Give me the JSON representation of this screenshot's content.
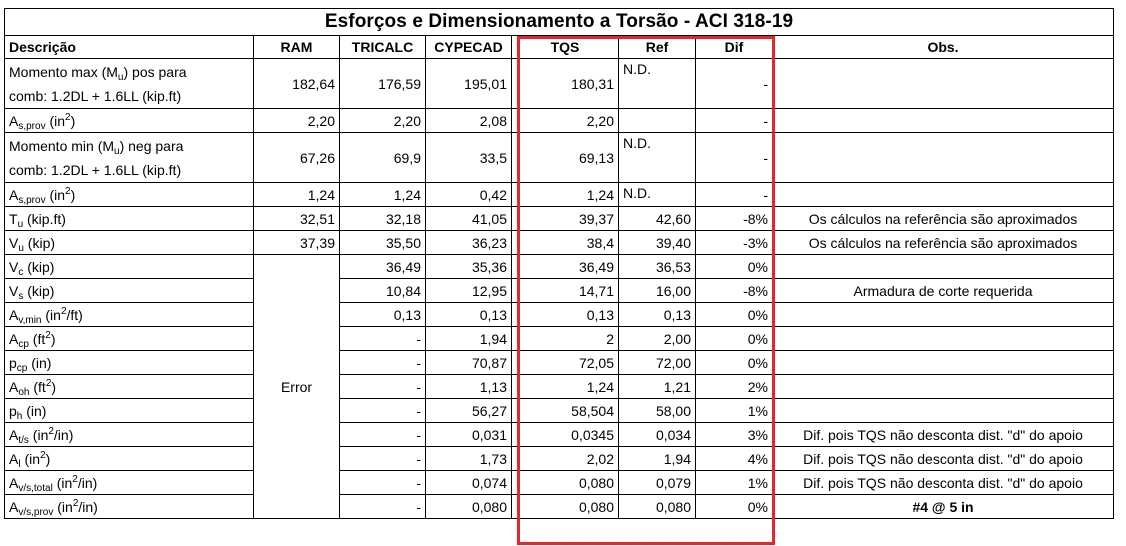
{
  "title": "Esforços e Dimensionamento a Torsão - ACI 318-19",
  "headers": {
    "descricao": "Descrição",
    "ram": "RAM",
    "tricalc": "TRICALC",
    "cypecad": "CYPECAD",
    "tqs": "TQS",
    "ref": "Ref",
    "dif": "Dif",
    "obs": "Obs."
  },
  "rows": [
    {
      "d1": "Momento max (M",
      "dsub": "u",
      "d2": ") pos para",
      "dline2": "comb: 1.2DL + 1.6LL (kip.ft)",
      "ram": "182,64",
      "tricalc": "176,59",
      "cypecad": "195,01",
      "tqs": "180,31",
      "ref": "N.D.",
      "dif": "-",
      "obs": ""
    },
    {
      "d1": "A",
      "dsub": "s,prov",
      "d2": " (in",
      "dsup": "2",
      "d3": ")",
      "ram": "2,20",
      "tricalc": "2,20",
      "cypecad": "2,08",
      "tqs": "2,20",
      "ref": "",
      "dif": "-",
      "obs": ""
    },
    {
      "d1": "Momento min (M",
      "dsub": "u",
      "d2": ") neg para",
      "dline2": "comb: 1.2DL + 1.6LL (kip.ft)",
      "ram": "67,26",
      "tricalc": "69,9",
      "cypecad": "33,5",
      "tqs": "69,13",
      "ref": "N.D.",
      "dif": "-",
      "obs": ""
    },
    {
      "d1": "A",
      "dsub": "s,prov",
      "d2": " (in",
      "dsup": "2",
      "d3": ")",
      "ram": "1,24",
      "tricalc": "1,24",
      "cypecad": "0,42",
      "tqs": "1,24",
      "ref": "N.D.",
      "dif": "-",
      "obs": ""
    },
    {
      "d1": "T",
      "dsub": "u",
      "d2": " (kip.ft)",
      "ram": "32,51",
      "tricalc": "32,18",
      "cypecad": "41,05",
      "tqs": "39,37",
      "ref": "42,60",
      "dif": "-8%",
      "obs": "Os cálculos na referência são aproximados"
    },
    {
      "d1": "V",
      "dsub": "u",
      "d2": " (kip)",
      "ram": "37,39",
      "tricalc": "35,50",
      "cypecad": "36,23",
      "tqs": "38,4",
      "ref": "39,40",
      "dif": "-3%",
      "obs": "Os cálculos na referência são aproximados"
    },
    {
      "d1": "V",
      "dsub": "c",
      "d2": " (kip)",
      "tricalc": "36,49",
      "cypecad": "35,36",
      "tqs": "36,49",
      "ref": "36,53",
      "dif": "0%",
      "obs": ""
    },
    {
      "d1": "V",
      "dsub": "s",
      "d2": " (kip)",
      "tricalc": "10,84",
      "cypecad": "12,95",
      "tqs": "14,71",
      "ref": "16,00",
      "dif": "-8%",
      "obs": "Armadura de corte requerida"
    },
    {
      "d1": "A",
      "dsub": "v,min",
      "d2": " (in",
      "dsup": "2",
      "d3": "/ft)",
      "tricalc": "0,13",
      "cypecad": "0,13",
      "tqs": "0,13",
      "ref": "0,13",
      "dif": "0%",
      "obs": ""
    },
    {
      "d1": "A",
      "dsub": "cp",
      "d2": " (ft",
      "dsup": "2",
      "d3": ")",
      "tricalc": "-",
      "cypecad": "1,94",
      "tqs": "2",
      "ref": "2,00",
      "dif": "0%",
      "obs": ""
    },
    {
      "d1": "p",
      "dsub": "cp",
      "d2": " (in)",
      "tricalc": "-",
      "cypecad": "70,87",
      "tqs": "72,05",
      "ref": "72,00",
      "dif": "0%",
      "obs": ""
    },
    {
      "d1": "A",
      "dsub": "oh",
      "d2": " (ft",
      "dsup": "2",
      "d3": ")",
      "tricalc": "-",
      "cypecad": "1,13",
      "tqs": "1,24",
      "ref": "1,21",
      "dif": "2%",
      "obs": ""
    },
    {
      "d1": "p",
      "dsub": "h",
      "d2": " (in)",
      "tricalc": "-",
      "cypecad": "56,27",
      "tqs": "58,504",
      "ref": "58,00",
      "dif": "1%",
      "obs": ""
    },
    {
      "d1": "A",
      "dsub": "t/s",
      "d2": " (in",
      "dsup": "2",
      "d3": "/in)",
      "tricalc": "-",
      "cypecad": "0,031",
      "tqs": "0,0345",
      "ref": "0,034",
      "dif": "3%",
      "obs": "Dif. pois TQS não desconta dist. \"d\" do apoio"
    },
    {
      "d1": "A",
      "dsub": "l",
      "d2": " (in",
      "dsup": "2",
      "d3": ")",
      "tricalc": "-",
      "cypecad": "1,73",
      "tqs": "2,02",
      "ref": "1,94",
      "dif": "4%",
      "obs": "Dif. pois TQS não desconta dist. \"d\" do apoio"
    },
    {
      "d1": "A",
      "dsub": "v/s,total",
      "d2": " (in",
      "dsup": "2",
      "d3": "/in)",
      "tricalc": "-",
      "cypecad": "0,074",
      "tqs": "0,080",
      "ref": "0,079",
      "dif": "1%",
      "obs": "Dif. pois TQS não desconta dist. \"d\" do apoio"
    },
    {
      "d1": "A",
      "dsub": "v/s,prov",
      "d2": " (in",
      "dsup": "2",
      "d3": "/in)",
      "tricalc": "-",
      "cypecad": "0,080",
      "tqs": "0,080",
      "ref": "0,080",
      "dif": "0%",
      "obs": "#4 @ 5 in"
    }
  ],
  "ram_merged": "Error",
  "highlight_color": "#e3262b"
}
